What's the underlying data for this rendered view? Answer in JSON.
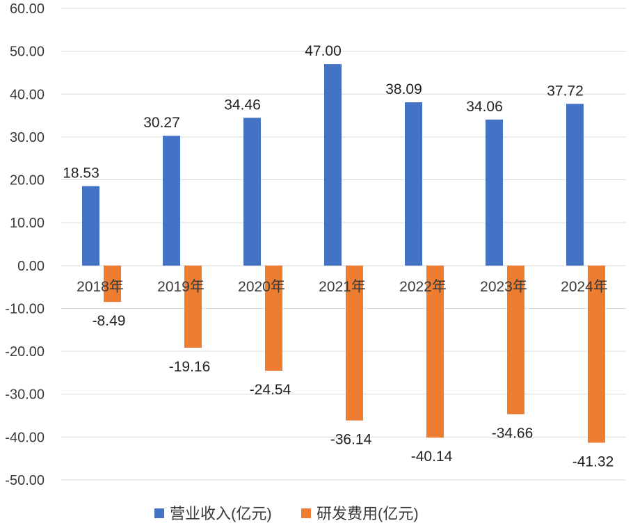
{
  "chart_data": {
    "type": "bar",
    "categories": [
      "2018年",
      "2019年",
      "2020年",
      "2021年",
      "2022年",
      "2023年",
      "2024年"
    ],
    "series": [
      {
        "name": "营业收入(亿元)",
        "color": "#4472C4",
        "values": [
          18.53,
          30.27,
          34.46,
          47.0,
          38.09,
          34.06,
          37.72
        ]
      },
      {
        "name": "研发费用(亿元)",
        "color": "#ED7D31",
        "values": [
          -8.49,
          -19.16,
          -24.54,
          -36.14,
          -40.14,
          -34.66,
          -41.32
        ]
      }
    ],
    "ylim": [
      -50,
      60
    ],
    "yticks": [
      60,
      50,
      40,
      30,
      20,
      10,
      0,
      -10,
      -20,
      -30,
      -40,
      -50
    ],
    "decimals": 2,
    "grid": true,
    "legend": "bottom"
  }
}
